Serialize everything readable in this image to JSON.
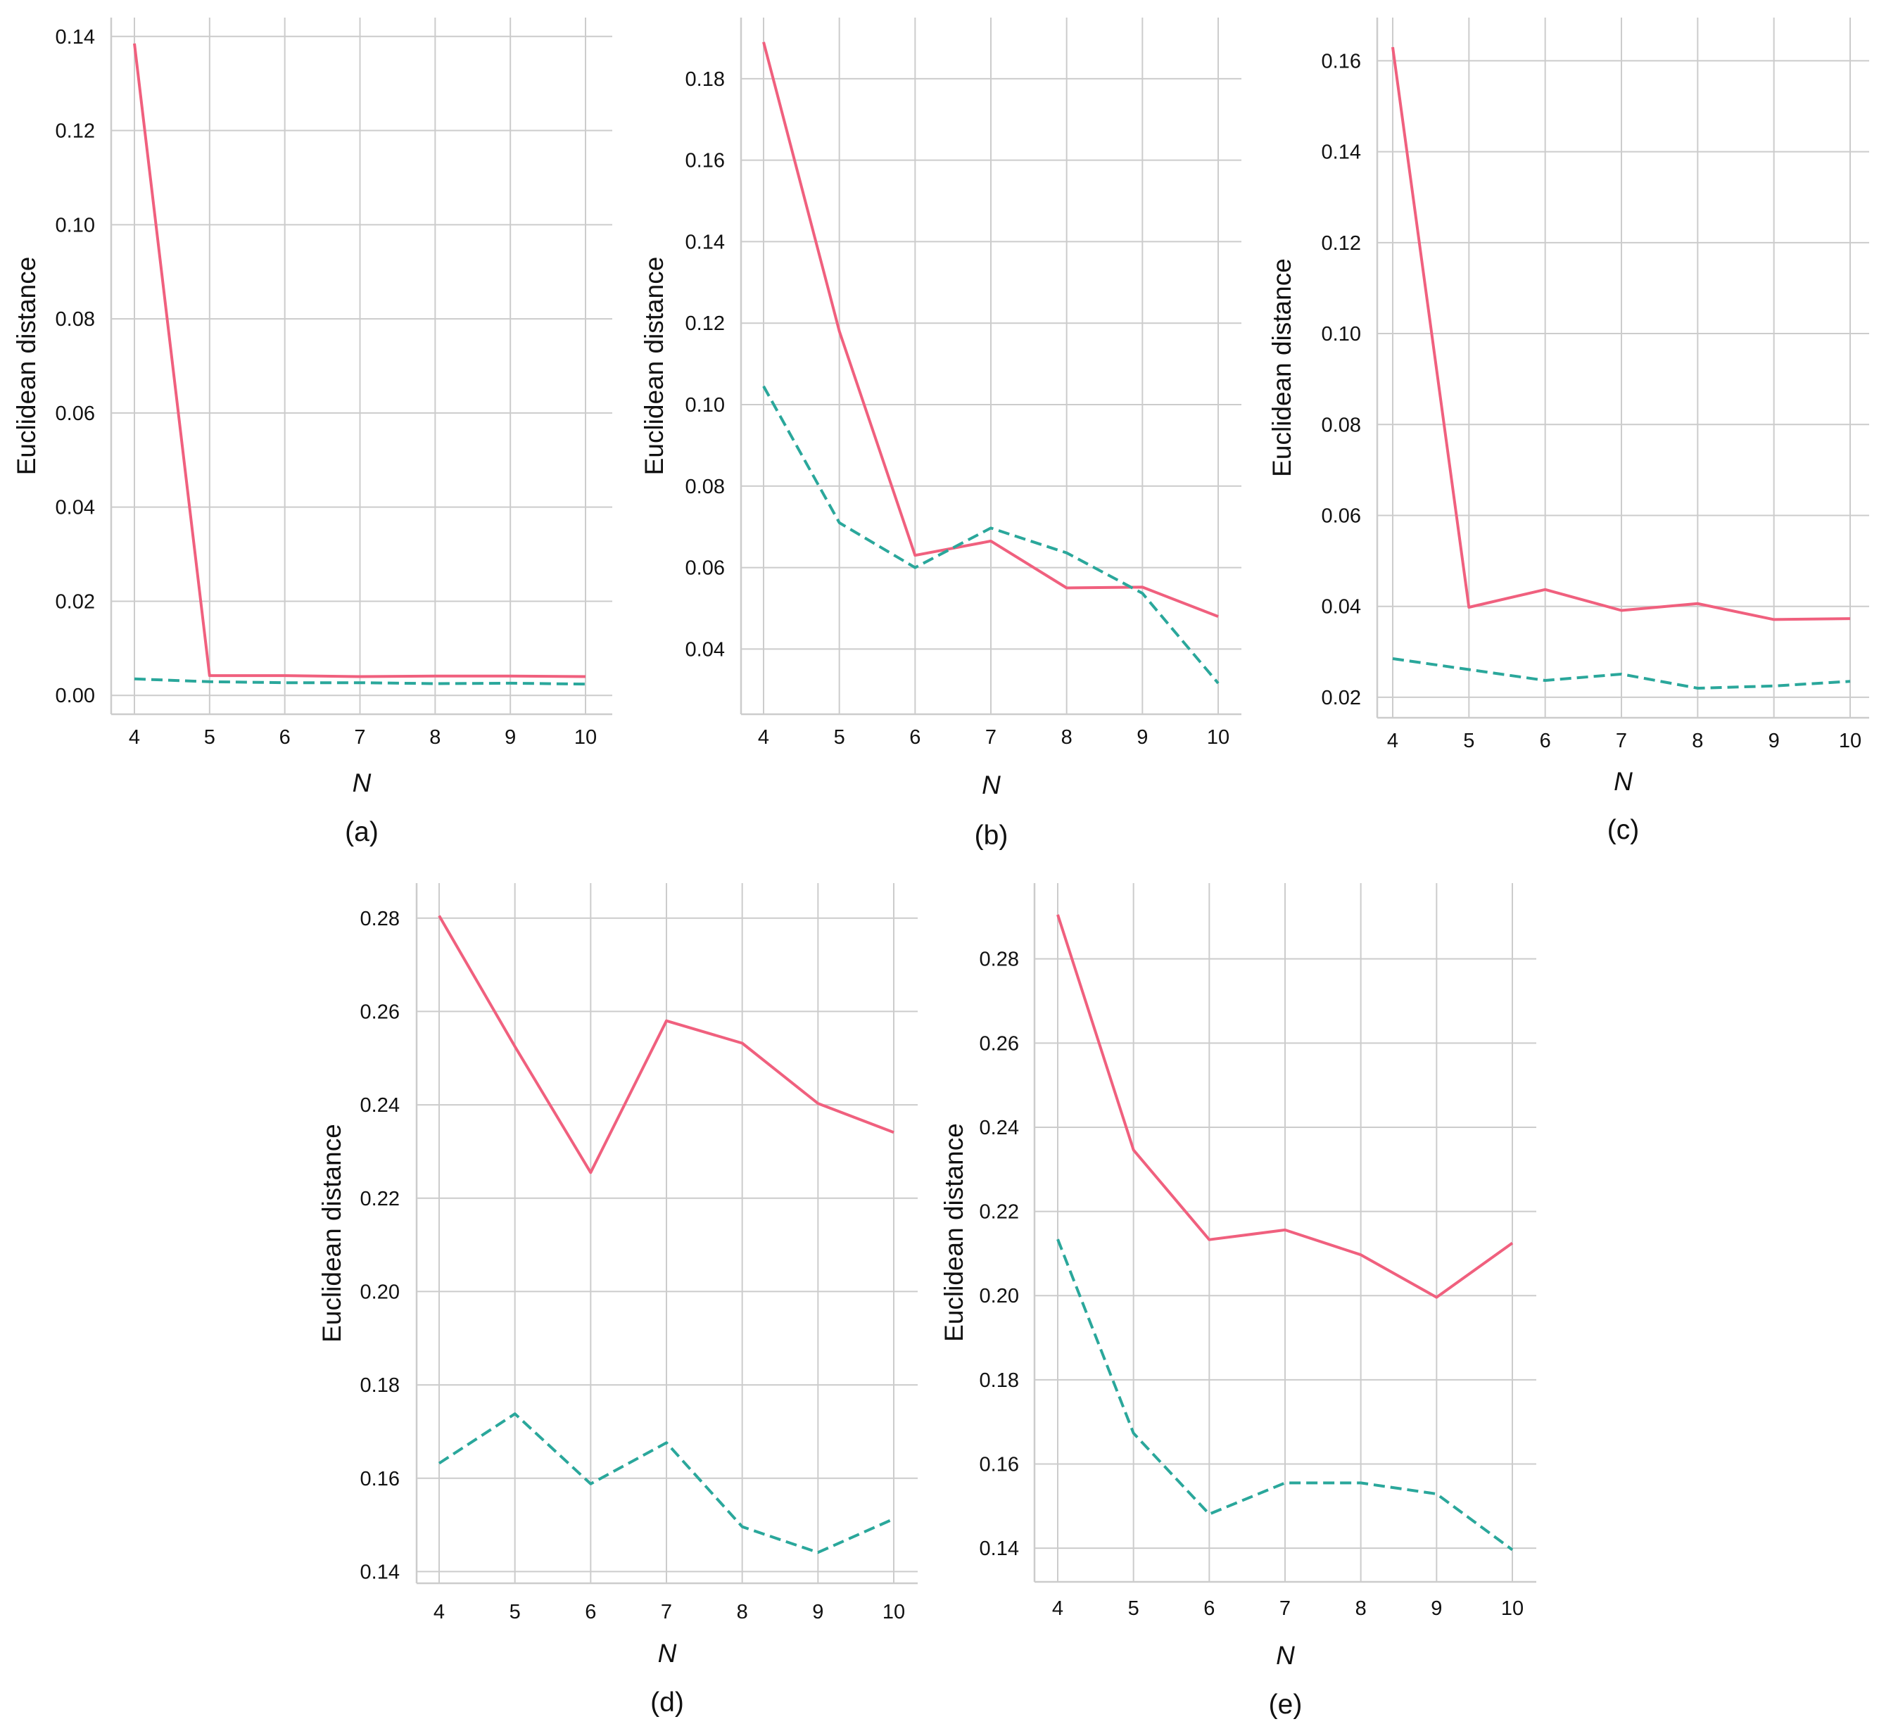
{
  "figure": {
    "colors": {
      "solid_series": "#f0607e",
      "dashed_series": "#2aa79b",
      "grid": "#cccccc",
      "text": "#111111"
    }
  },
  "chart_data": [
    {
      "id": "a",
      "type": "line",
      "panel_label": "(a)",
      "xlabel": "N",
      "ylabel": "Euclidean distance",
      "x": [
        4,
        5,
        6,
        7,
        8,
        9,
        10
      ],
      "xticks": [
        "4",
        "5",
        "6",
        "7",
        "8",
        "9",
        "10"
      ],
      "ylim": [
        -0.004,
        0.144
      ],
      "yticks": [
        0.0,
        0.02,
        0.04,
        0.06,
        0.08,
        0.1,
        0.12,
        0.14
      ],
      "ytick_labels": [
        "0.00",
        "0.02",
        "0.04",
        "0.06",
        "0.08",
        "0.10",
        "0.12",
        "0.14"
      ],
      "grid": true,
      "series": [
        {
          "name": "solid",
          "style": "solid",
          "values": [
            0.1385,
            0.0042,
            0.0042,
            0.004,
            0.0041,
            0.0041,
            0.004
          ]
        },
        {
          "name": "dashed",
          "style": "dashed",
          "values": [
            0.0035,
            0.0029,
            0.0027,
            0.0027,
            0.0025,
            0.0026,
            0.0024
          ]
        }
      ]
    },
    {
      "id": "b",
      "type": "line",
      "panel_label": "(b)",
      "xlabel": "N",
      "ylabel": "Euclidean distance",
      "x": [
        4,
        5,
        6,
        7,
        8,
        9,
        10
      ],
      "xticks": [
        "4",
        "5",
        "6",
        "7",
        "8",
        "9",
        "10"
      ],
      "ylim": [
        0.024,
        0.195
      ],
      "yticks": [
        0.04,
        0.06,
        0.08,
        0.1,
        0.12,
        0.14,
        0.16,
        0.18
      ],
      "ytick_labels": [
        "0.04",
        "0.06",
        "0.08",
        "0.10",
        "0.12",
        "0.14",
        "0.16",
        "0.18"
      ],
      "grid": true,
      "series": [
        {
          "name": "solid",
          "style": "solid",
          "values": [
            0.189,
            0.118,
            0.063,
            0.0665,
            0.055,
            0.0552,
            0.048
          ]
        },
        {
          "name": "dashed",
          "style": "dashed",
          "values": [
            0.1045,
            0.071,
            0.06,
            0.0697,
            0.0636,
            0.0537,
            0.0316
          ]
        }
      ]
    },
    {
      "id": "c",
      "type": "line",
      "panel_label": "(c)",
      "xlabel": "N",
      "ylabel": "Euclidean distance",
      "x": [
        4,
        5,
        6,
        7,
        8,
        9,
        10
      ],
      "xticks": [
        "4",
        "5",
        "6",
        "7",
        "8",
        "9",
        "10"
      ],
      "ylim": [
        0.0155,
        0.1695
      ],
      "yticks": [
        0.02,
        0.04,
        0.06,
        0.08,
        0.1,
        0.12,
        0.14,
        0.16
      ],
      "ytick_labels": [
        "0.02",
        "0.04",
        "0.06",
        "0.08",
        "0.10",
        "0.12",
        "0.14",
        "0.16"
      ],
      "grid": true,
      "series": [
        {
          "name": "solid",
          "style": "solid",
          "values": [
            0.163,
            0.0398,
            0.0437,
            0.0391,
            0.0406,
            0.0371,
            0.0373
          ]
        },
        {
          "name": "dashed",
          "style": "dashed",
          "values": [
            0.0285,
            0.0261,
            0.0237,
            0.0251,
            0.022,
            0.0225,
            0.0235
          ]
        }
      ]
    },
    {
      "id": "d",
      "type": "line",
      "panel_label": "(d)",
      "xlabel": "N",
      "ylabel": "Euclidean distance",
      "x": [
        4,
        5,
        6,
        7,
        8,
        9,
        10
      ],
      "xticks": [
        "4",
        "5",
        "6",
        "7",
        "8",
        "9",
        "10"
      ],
      "ylim": [
        0.1375,
        0.2875
      ],
      "yticks": [
        0.14,
        0.16,
        0.18,
        0.2,
        0.22,
        0.24,
        0.26,
        0.28
      ],
      "ytick_labels": [
        "0.14",
        "0.16",
        "0.18",
        "0.20",
        "0.22",
        "0.24",
        "0.26",
        "0.28"
      ],
      "grid": true,
      "series": [
        {
          "name": "solid",
          "style": "solid",
          "values": [
            0.2805,
            0.2525,
            0.2255,
            0.258,
            0.2532,
            0.2403,
            0.2341
          ]
        },
        {
          "name": "dashed",
          "style": "dashed",
          "values": [
            0.1632,
            0.1738,
            0.1588,
            0.1676,
            0.1496,
            0.1441,
            0.1513
          ]
        }
      ]
    },
    {
      "id": "e",
      "type": "line",
      "panel_label": "(e)",
      "xlabel": "N",
      "ylabel": "Euclidean distance",
      "x": [
        4,
        5,
        6,
        7,
        8,
        9,
        10
      ],
      "xticks": [
        "4",
        "5",
        "6",
        "7",
        "8",
        "9",
        "10"
      ],
      "ylim": [
        0.132,
        0.298
      ],
      "yticks": [
        0.14,
        0.16,
        0.18,
        0.2,
        0.22,
        0.24,
        0.26,
        0.28
      ],
      "ytick_labels": [
        "0.14",
        "0.16",
        "0.18",
        "0.20",
        "0.22",
        "0.24",
        "0.26",
        "0.28"
      ],
      "grid": true,
      "series": [
        {
          "name": "solid",
          "style": "solid",
          "values": [
            0.2905,
            0.2346,
            0.2133,
            0.2156,
            0.2097,
            0.1996,
            0.2125
          ]
        },
        {
          "name": "dashed",
          "style": "dashed",
          "values": [
            0.2134,
            0.1673,
            0.1481,
            0.1555,
            0.1555,
            0.1529,
            0.1396
          ]
        }
      ]
    }
  ]
}
